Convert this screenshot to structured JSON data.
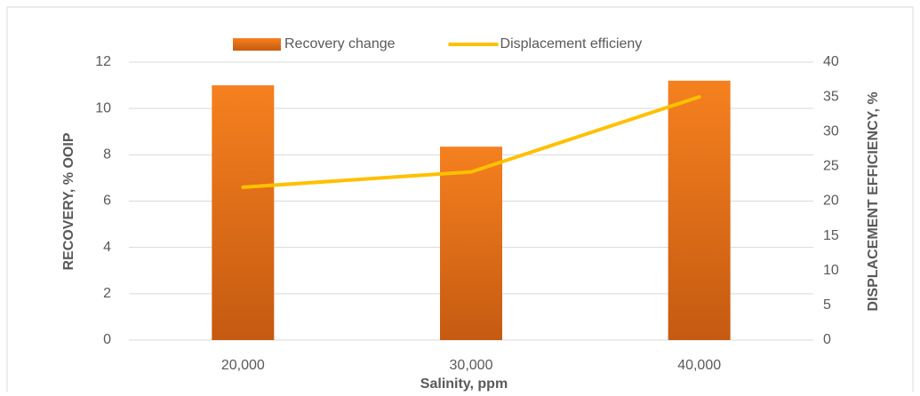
{
  "chart_data": {
    "type": "bar",
    "categories": [
      "20,000",
      "30,000",
      "40,000"
    ],
    "series": [
      {
        "name": "Recovery change",
        "type": "bar",
        "color": "#f5801f",
        "values": [
          11,
          8.35,
          11.2
        ]
      },
      {
        "name": "Displacement efficieny",
        "type": "line",
        "axis": "y2",
        "color": "#ffc000",
        "values": [
          22,
          24.2,
          35
        ]
      }
    ],
    "ylabel": "RECOVERY, % OOIP",
    "y2label": "DISPLACEMENT EFFICIENCY, %",
    "xlabel": "Salinity, ppm",
    "ylim": [
      0,
      12
    ],
    "yticks": [
      0,
      2,
      4,
      6,
      8,
      10,
      12
    ],
    "y2lim": [
      0,
      40
    ],
    "y2ticks": [
      0,
      5,
      10,
      15,
      20,
      25,
      30,
      35,
      40
    ],
    "grid": true,
    "legend": "top"
  }
}
